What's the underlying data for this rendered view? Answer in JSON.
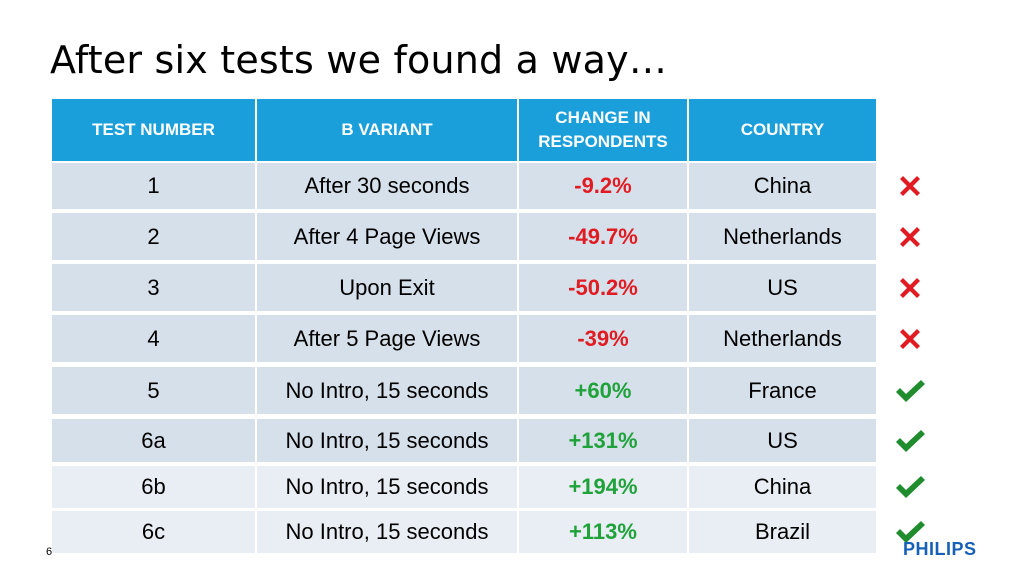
{
  "slide": {
    "title": "After six tests we found a way…",
    "number": "6",
    "logo": "PHILIPS"
  },
  "table": {
    "headers": [
      "TEST NUMBER",
      "B VARIANT",
      "CHANGE IN RESPONDENTS",
      "COUNTRY"
    ],
    "rows": [
      {
        "test": "1",
        "variant": "After 30 seconds",
        "change": "-9.2%",
        "country": "China",
        "result": "fail"
      },
      {
        "test": "2",
        "variant": "After 4 Page Views",
        "change": "-49.7%",
        "country": "Netherlands",
        "result": "fail"
      },
      {
        "test": "3",
        "variant": "Upon Exit",
        "change": "-50.2%",
        "country": "US",
        "result": "fail"
      },
      {
        "test": "4",
        "variant": "After 5 Page Views",
        "change": "-39%",
        "country": "Netherlands",
        "result": "fail"
      },
      {
        "test": "5",
        "variant": "No Intro, 15 seconds",
        "change": "+60%",
        "country": "France",
        "result": "pass"
      },
      {
        "test": "6a",
        "variant": "No Intro, 15 seconds",
        "change": "+131%",
        "country": "US",
        "result": "pass"
      },
      {
        "test": "6b",
        "variant": "No Intro, 15 seconds",
        "change": "+194%",
        "country": "China",
        "result": "pass"
      },
      {
        "test": "6c",
        "variant": "No Intro, 15 seconds",
        "change": "+113%",
        "country": "Brazil",
        "result": "pass"
      }
    ]
  },
  "icons": {
    "fail": "red-cross-icon",
    "pass": "green-check-icon"
  },
  "colors": {
    "header": "#1b9fdb",
    "negative": "#e11b22",
    "positive": "#1fa23a",
    "logo": "#1660b8"
  }
}
